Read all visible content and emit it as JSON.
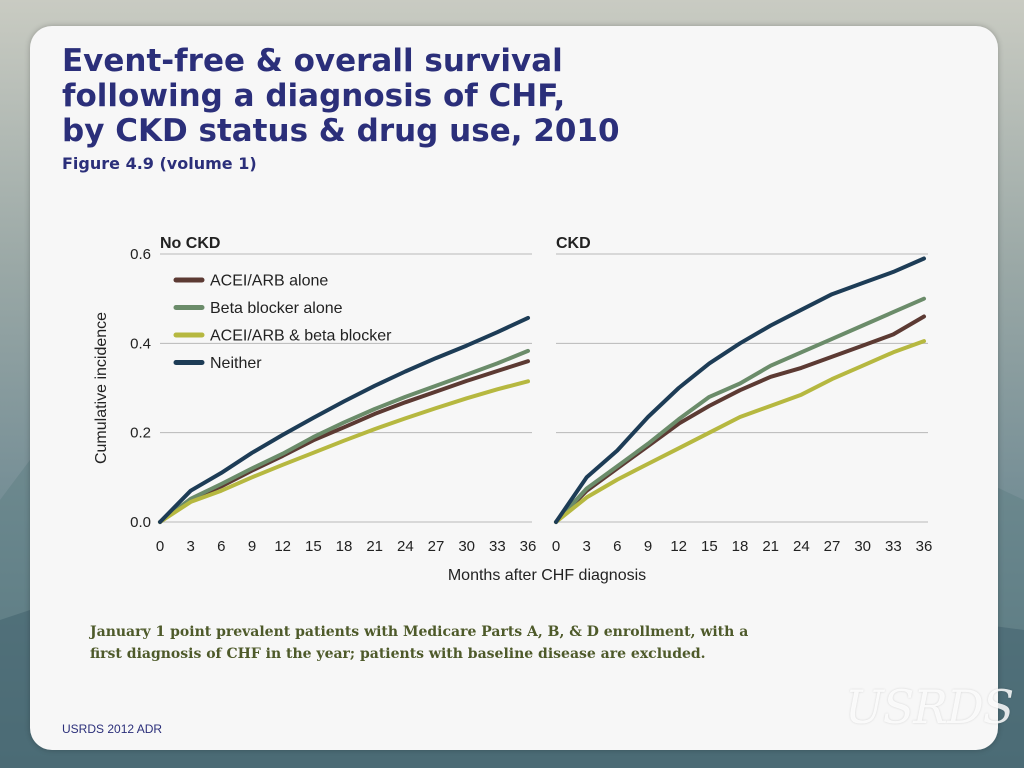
{
  "slide": {
    "title_lines": [
      "Event-free & overall survival",
      "following a diagnosis of CHF,",
      "by CKD status & drug use, 2010"
    ],
    "subtitle": "Figure 4.9 (volume 1)",
    "note": "January 1 point prevalent patients with Medicare Parts A, B, & D enrollment, with a first diagnosis of CHF in the year; patients with baseline disease are excluded.",
    "footer": "USRDS 2012 ADR",
    "logo": "USRDS"
  },
  "colors": {
    "ACEI/ARB alone": "#5c3a33",
    "Beta blocker alone": "#6b8c6a",
    "ACEI/ARB & beta blocker": "#b6b840",
    "Neither": "#1d3c56"
  },
  "chart_data": [
    {
      "type": "line",
      "title": "No CKD",
      "xlabel": "Months after CHF diagnosis",
      "ylabel": "Cumulative incidence",
      "xlim": [
        0,
        36
      ],
      "ylim": [
        0,
        0.6
      ],
      "xticks": [
        0,
        3,
        6,
        9,
        12,
        15,
        18,
        21,
        24,
        27,
        30,
        33,
        36
      ],
      "yticks": [
        "0.0",
        "0.2",
        "0.4",
        "0.6"
      ],
      "legend": [
        "ACEI/ARB alone",
        "Beta blocker alone",
        "ACEI/ARB & beta blocker",
        "Neither"
      ],
      "x": [
        0,
        3,
        6,
        9,
        12,
        15,
        18,
        21,
        24,
        27,
        30,
        33,
        36
      ],
      "series": [
        {
          "name": "ACEI/ARB alone",
          "values": [
            0,
            0.05,
            0.08,
            0.115,
            0.148,
            0.183,
            0.212,
            0.242,
            0.268,
            0.292,
            0.316,
            0.338,
            0.36
          ]
        },
        {
          "name": "Beta blocker alone",
          "values": [
            0,
            0.052,
            0.085,
            0.12,
            0.153,
            0.19,
            0.223,
            0.253,
            0.28,
            0.305,
            0.33,
            0.355,
            0.383
          ]
        },
        {
          "name": "ACEI/ARB & beta blocker",
          "values": [
            0,
            0.045,
            0.07,
            0.1,
            0.128,
            0.155,
            0.182,
            0.208,
            0.232,
            0.255,
            0.277,
            0.297,
            0.315
          ]
        },
        {
          "name": "Neither",
          "values": [
            0,
            0.07,
            0.11,
            0.155,
            0.195,
            0.233,
            0.27,
            0.305,
            0.337,
            0.367,
            0.395,
            0.425,
            0.457
          ]
        }
      ]
    },
    {
      "type": "line",
      "title": "CKD",
      "xlabel": "Months after CHF diagnosis",
      "ylabel": "Cumulative incidence",
      "xlim": [
        0,
        36
      ],
      "ylim": [
        0,
        0.6
      ],
      "xticks": [
        0,
        3,
        6,
        9,
        12,
        15,
        18,
        21,
        24,
        27,
        30,
        33,
        36
      ],
      "x": [
        0,
        3,
        6,
        9,
        12,
        15,
        18,
        21,
        24,
        27,
        30,
        33,
        36
      ],
      "series": [
        {
          "name": "ACEI/ARB alone",
          "values": [
            0,
            0.07,
            0.12,
            0.17,
            0.22,
            0.26,
            0.295,
            0.325,
            0.345,
            0.37,
            0.395,
            0.42,
            0.46
          ]
        },
        {
          "name": "Beta blocker alone",
          "values": [
            0,
            0.075,
            0.125,
            0.175,
            0.23,
            0.28,
            0.31,
            0.35,
            0.38,
            0.41,
            0.44,
            0.47,
            0.5
          ]
        },
        {
          "name": "ACEI/ARB & beta blocker",
          "values": [
            0,
            0.055,
            0.095,
            0.13,
            0.165,
            0.2,
            0.235,
            0.26,
            0.285,
            0.32,
            0.35,
            0.38,
            0.405
          ]
        },
        {
          "name": "Neither",
          "values": [
            0,
            0.1,
            0.16,
            0.235,
            0.3,
            0.355,
            0.4,
            0.44,
            0.475,
            0.51,
            0.535,
            0.56,
            0.59
          ]
        }
      ]
    }
  ]
}
